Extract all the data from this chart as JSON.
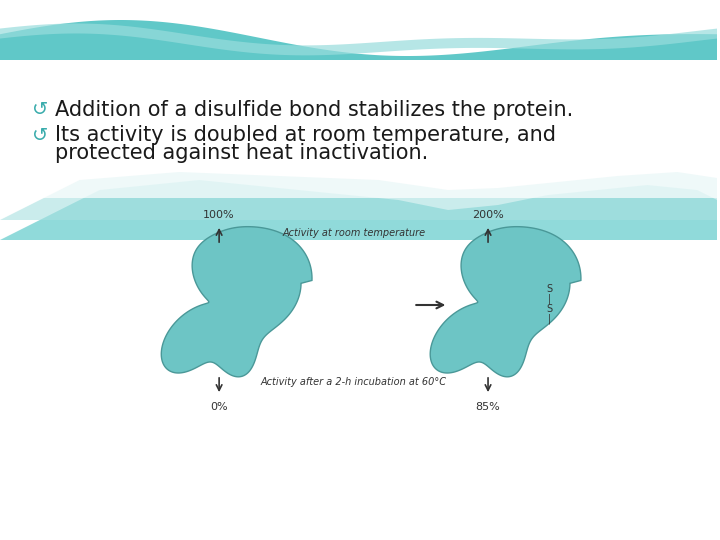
{
  "bg_color": "#f0f8fb",
  "wave_color_1": "#7ecfcf",
  "wave_color_2": "#b8e8e8",
  "text_color": "#1a1a1a",
  "bullet_color": "#3aacac",
  "protein_fill": "#6dc5c5",
  "protein_edge": "#4a9898",
  "bullet1": "Addition of a disulfide bond stabilizes the protein.",
  "bullet2_line1": "Its activity is doubled at room temperature, and",
  "bullet2_line2": "protected against heat inactivation.",
  "label_100": "100%",
  "label_200": "200%",
  "label_0": "0%",
  "label_85": "85%",
  "label_room": "Activity at room temperature",
  "label_heat": "Activity after a 2-h incubation at 60°C",
  "ss_labels": [
    "S",
    "|",
    "S",
    "|"
  ],
  "font_size_bullets": 15,
  "font_size_labels": 7
}
